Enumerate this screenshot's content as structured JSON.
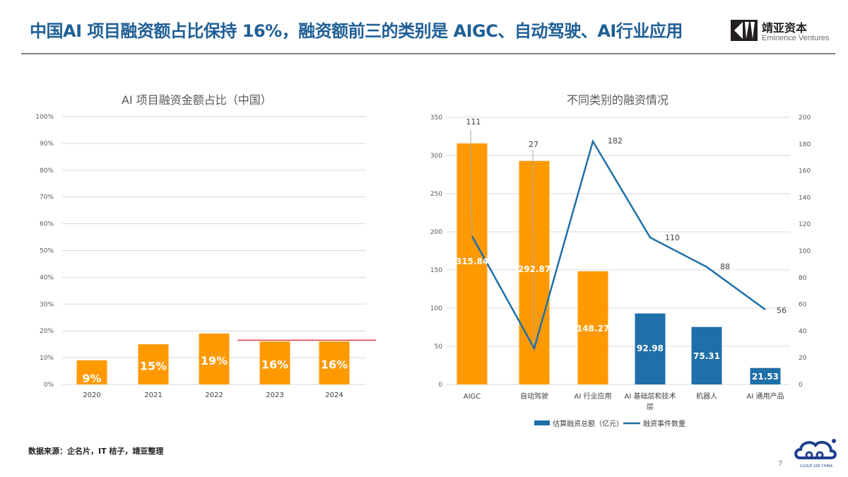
{
  "header": {
    "title": "中国AI 项目融资额占比保持 16%，融资额前三的类别是 AIGC、自动驾驶、AI行业应用",
    "logo_cn": "靖亚资本",
    "logo_en": "Eminence Ventures"
  },
  "colors": {
    "title_blue": "#1f5f96",
    "orange": "#ff9900",
    "blue_bar": "#1f6fa8",
    "line_blue": "#1f6fa8",
    "red_line": "#e8444a",
    "grid": "#d9d9d9"
  },
  "chart_data": [
    {
      "type": "bar",
      "title": "AI 项目融资金额占比（中国）",
      "categories": [
        "2020",
        "2021",
        "2022",
        "2023",
        "2024"
      ],
      "values": [
        9,
        15,
        19,
        16,
        16
      ],
      "data_labels": [
        "9%",
        "15%",
        "19%",
        "16%",
        "16%"
      ],
      "xlabel": "",
      "ylabel": "",
      "ylim": [
        0,
        100
      ],
      "yticks": [
        "0%",
        "10%",
        "20%",
        "30%",
        "40%",
        "50%",
        "60%",
        "70%",
        "80%",
        "90%",
        "100%"
      ],
      "grid": true,
      "annotation": "red horizontal reference line at 16% spanning 2023–2024",
      "bar_color": "#ff9900"
    },
    {
      "type": "bar+line",
      "title": "不同类别的融资情况",
      "categories": [
        "AIGC",
        "自动驾驶",
        "AI 行业应用",
        "AI 基础层和技术层",
        "机器人",
        "AI 通用产品"
      ],
      "category_labels_display": [
        [
          "AIGC"
        ],
        [
          "自动驾驶"
        ],
        [
          "AI 行业应用"
        ],
        [
          "AI 基础层和技术",
          "层"
        ],
        [
          "机器人"
        ],
        [
          "AI 通用产品"
        ]
      ],
      "series": [
        {
          "name": "估算融资总额（亿元）",
          "type": "bar",
          "axis": "left",
          "values": [
            315.84,
            292.87,
            148.27,
            92.98,
            75.31,
            21.53
          ],
          "data_labels": [
            "315.84",
            "292.87",
            "148.27",
            "92.98",
            "75.31",
            "21.53"
          ],
          "colors": [
            "#ff9900",
            "#ff9900",
            "#ff9900",
            "#1f6fa8",
            "#1f6fa8",
            "#1f6fa8"
          ]
        },
        {
          "name": "融资事件数量",
          "type": "line",
          "axis": "right",
          "values": [
            111,
            27,
            182,
            110,
            88,
            56
          ],
          "data_labels": [
            "111",
            "27",
            "182",
            "110",
            "88",
            "56"
          ],
          "color": "#1f6fa8"
        }
      ],
      "ylim_left": [
        0,
        350
      ],
      "yticks_left": [
        "0",
        "50",
        "100",
        "150",
        "200",
        "250",
        "300",
        "350"
      ],
      "ylim_right": [
        0,
        200
      ],
      "yticks_right": [
        "0",
        "20",
        "40",
        "60",
        "80",
        "100",
        "120",
        "140",
        "160",
        "180",
        "200"
      ],
      "legend_position": "bottom",
      "grid": true
    }
  ],
  "footer": {
    "source": "数据来源：企名片，IT 桔子，靖亚整理",
    "page_number": "7",
    "cloud_logo_text": "CLOUD 100 CHINA"
  }
}
